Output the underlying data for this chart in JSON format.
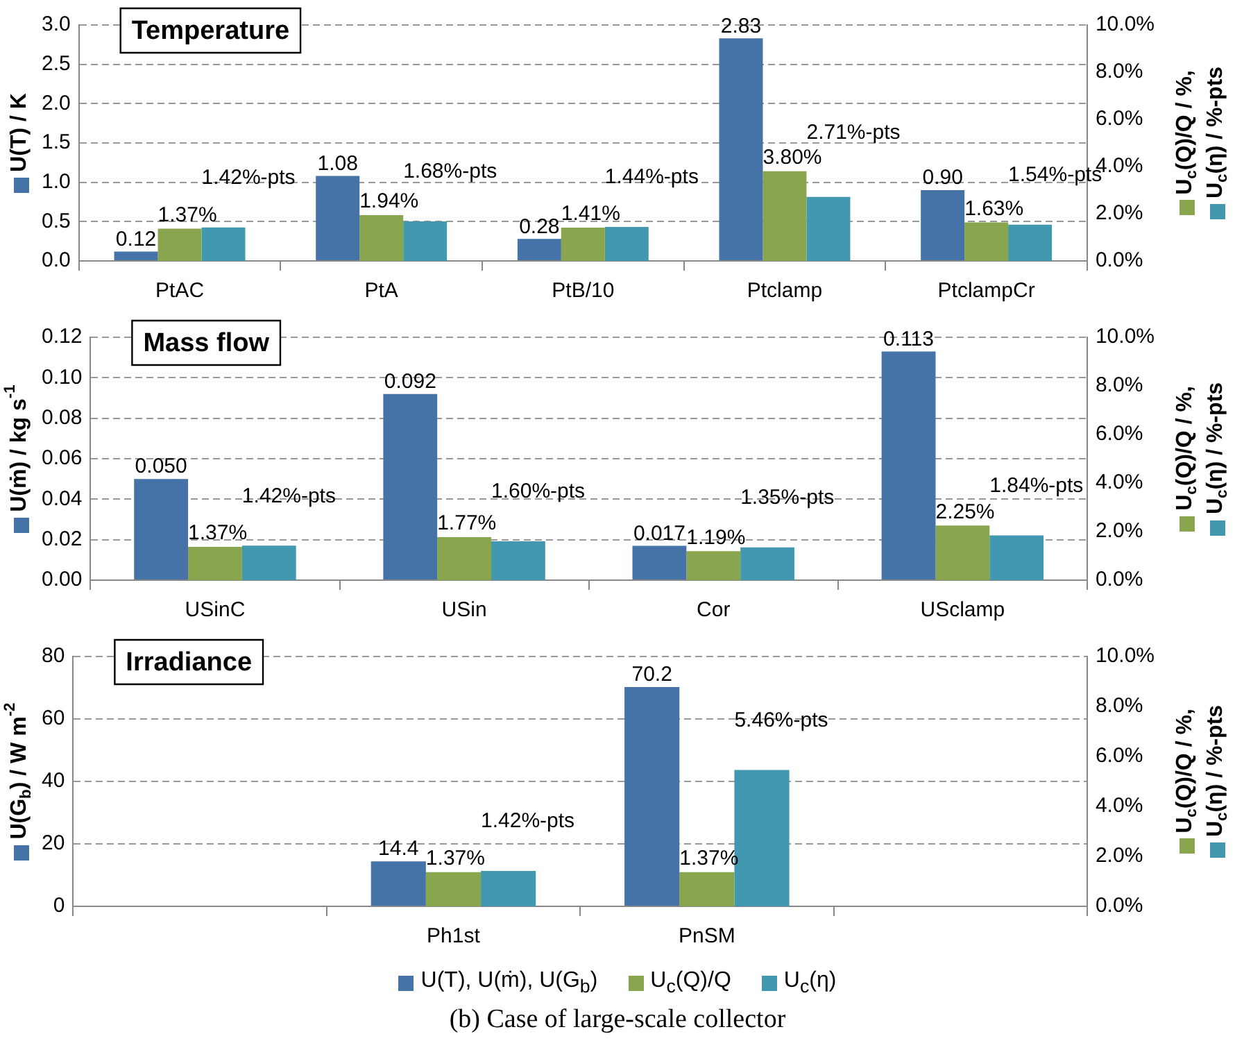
{
  "chart_data": [
    {
      "type": "bar",
      "title": "Temperature",
      "categories": [
        "PtAC",
        "PtA",
        "PtB/10",
        "Ptclamp",
        "PtclampCr"
      ],
      "series": [
        {
          "color": "#4572a7",
          "axis": "y",
          "values": [
            0.12,
            1.08,
            0.28,
            2.83,
            0.9
          ],
          "value_labels": [
            "0.12",
            "1.08",
            "0.28",
            "2.83",
            "0.90"
          ]
        },
        {
          "color": "#89a54e",
          "axis": "y2",
          "values": [
            1.37,
            1.94,
            1.41,
            3.8,
            1.63
          ],
          "value_labels": [
            "1.37%",
            "1.94%",
            "1.41%",
            "3.80%",
            "1.63%"
          ]
        },
        {
          "color": "#4198af",
          "axis": "y2",
          "values": [
            1.42,
            1.68,
            1.44,
            2.71,
            1.54
          ],
          "value_labels": [
            "1.42%-pts",
            "1.68%-pts",
            "1.44%-pts",
            "2.71%-pts",
            "1.54%-pts"
          ]
        }
      ],
      "ylabel": "U(T) / K",
      "y2label": "U$_{c}$(Q)/Q / %, U$_{c}$(η) / %-pts",
      "ylim": [
        0,
        3
      ],
      "yticks": [
        {
          "value": 0,
          "label": "0.0"
        },
        {
          "value": 0.5,
          "label": "0.5"
        },
        {
          "value": 1,
          "label": "1.0"
        },
        {
          "value": 1.5,
          "label": "1.5"
        },
        {
          "value": 2,
          "label": "2.0"
        },
        {
          "value": 2.5,
          "label": "2.5"
        },
        {
          "value": 3,
          "label": "3.0"
        }
      ],
      "y2lim": [
        0,
        10
      ],
      "y2ticks": [
        {
          "value": 0,
          "label": "0.0%"
        },
        {
          "value": 2,
          "label": "2.0%"
        },
        {
          "value": 4,
          "label": "4.0%"
        },
        {
          "value": 6,
          "label": "6.0%"
        },
        {
          "value": 8,
          "label": "8.0%"
        },
        {
          "value": 10,
          "label": "10.0%"
        }
      ],
      "grid": "y",
      "legend": false
    },
    {
      "type": "bar",
      "title": "Mass flow",
      "categories": [
        "USinC",
        "USin",
        "Cor",
        "USclamp"
      ],
      "series": [
        {
          "color": "#4572a7",
          "axis": "y",
          "values": [
            0.05,
            0.092,
            0.017,
            0.113
          ],
          "value_labels": [
            "0.050",
            "0.092",
            "0.017",
            "0.113"
          ]
        },
        {
          "color": "#89a54e",
          "axis": "y2",
          "values": [
            1.37,
            1.77,
            1.19,
            2.25
          ],
          "value_labels": [
            "1.37%",
            "1.77%",
            "1.19%",
            "2.25%"
          ]
        },
        {
          "color": "#4198af",
          "axis": "y2",
          "values": [
            1.42,
            1.6,
            1.35,
            1.84
          ],
          "value_labels": [
            "1.42%-pts",
            "1.60%-pts",
            "1.35%-pts",
            "1.84%-pts"
          ]
        }
      ],
      "ylabel": "U(ṁ) / kg s$^{-1}$",
      "y2label": "U$_{c}$(Q)/Q / %, U$_{c}$(η) / %-pts",
      "ylim": [
        0,
        0.12
      ],
      "yticks": [
        {
          "value": 0,
          "label": "0.00"
        },
        {
          "value": 0.02,
          "label": "0.02"
        },
        {
          "value": 0.04,
          "label": "0.04"
        },
        {
          "value": 0.06,
          "label": "0.06"
        },
        {
          "value": 0.08,
          "label": "0.08"
        },
        {
          "value": 0.1,
          "label": "0.10"
        },
        {
          "value": 0.12,
          "label": "0.12"
        }
      ],
      "y2lim": [
        0,
        10
      ],
      "y2ticks": [
        {
          "value": 0,
          "label": "0.0%"
        },
        {
          "value": 2,
          "label": "2.0%"
        },
        {
          "value": 4,
          "label": "4.0%"
        },
        {
          "value": 6,
          "label": "6.0%"
        },
        {
          "value": 8,
          "label": "8.0%"
        },
        {
          "value": 10,
          "label": "10.0%"
        }
      ],
      "grid": "y",
      "legend": false
    },
    {
      "type": "bar",
      "title": "Irradiance",
      "categories": [
        null,
        "Ph1st",
        "PnSM",
        null
      ],
      "series": [
        {
          "name": "U(T), U(ṁ), U(G$_{b}$)",
          "color": "#4572a7",
          "axis": "y",
          "values": [
            null,
            14.4,
            70.2,
            null
          ],
          "value_labels": [
            null,
            "14.4",
            "70.2",
            null
          ]
        },
        {
          "name": "U$_{c}$(Q)/Q",
          "color": "#89a54e",
          "axis": "y2",
          "values": [
            null,
            1.37,
            1.37,
            null
          ],
          "value_labels": [
            null,
            "1.37%",
            "1.37%",
            null
          ]
        },
        {
          "name": "U$_{c}$(η)",
          "color": "#4198af",
          "axis": "y2",
          "values": [
            null,
            1.42,
            5.46,
            null
          ],
          "value_labels": [
            null,
            "1.42%-pts",
            "5.46%-pts",
            null
          ]
        }
      ],
      "ylabel": "U(G$_{b}$) / W m$^{-2}$",
      "y2label": "U$_{c}$(Q)/Q / %, U$_{c}$(η) / %-pts",
      "ylim": [
        0,
        80
      ],
      "yticks": [
        0,
        20,
        40,
        60,
        80
      ],
      "y2lim": [
        0,
        10
      ],
      "y2ticks": [
        {
          "value": 0,
          "label": "0.0%"
        },
        {
          "value": 2,
          "label": "2.0%"
        },
        {
          "value": 4,
          "label": "4.0%"
        },
        {
          "value": 6,
          "label": "6.0%"
        },
        {
          "value": 8,
          "label": "8.0%"
        },
        {
          "value": 10,
          "label": "10.0%"
        }
      ],
      "grid": "y",
      "legend": "bottom",
      "annotations": [
        "(b) Case of large-scale collector"
      ]
    }
  ]
}
